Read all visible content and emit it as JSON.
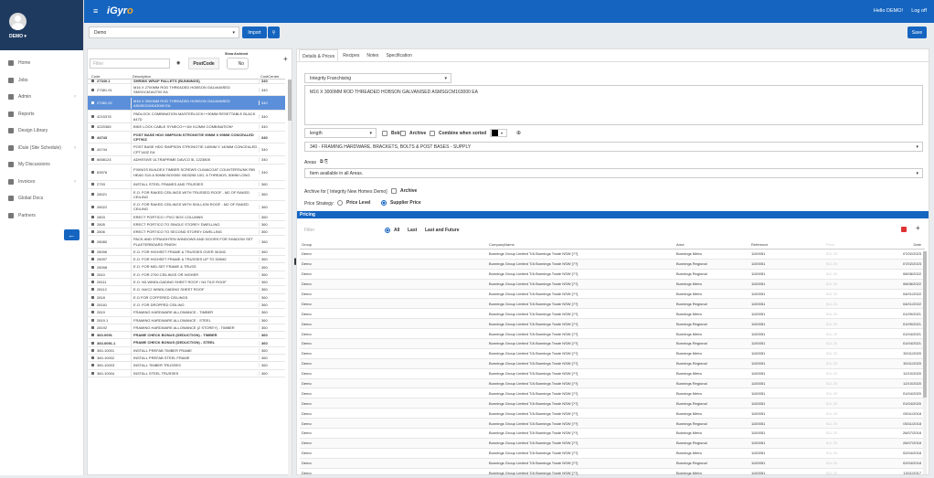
{
  "app": {
    "logo_prefix": "i",
    "logo_g": "Gyr",
    "logo_o": "o",
    "hello": "Hello DEMO!",
    "logoff": "Log off"
  },
  "user": {
    "name": "DEMO ▾"
  },
  "nav": [
    {
      "label": "Home",
      "icon": "home-icon",
      "chevron": ""
    },
    {
      "label": "Jobs",
      "icon": "jobs-icon",
      "chevron": ""
    },
    {
      "label": "Admin",
      "icon": "admin-icon",
      "chevron": "‹"
    },
    {
      "label": "Reports",
      "icon": "reports-icon",
      "chevron": ""
    },
    {
      "label": "Design Library",
      "icon": "design-library-icon",
      "chevron": ""
    },
    {
      "label": "iDule (Site Schedule)",
      "icon": "schedule-icon",
      "chevron": "‹"
    },
    {
      "label": "My Discussions",
      "icon": "discussions-icon",
      "chevron": ""
    },
    {
      "label": "Invoices",
      "icon": "invoices-icon",
      "chevron": "‹"
    },
    {
      "label": "Global Docs",
      "icon": "global-docs-icon",
      "chevron": ""
    },
    {
      "label": "Partners",
      "icon": "partners-icon",
      "chevron": ""
    }
  ],
  "toolbar": {
    "company": "Demo",
    "import": "Import",
    "save": "Save"
  },
  "left": {
    "filter_placeholder": "Filter",
    "postcode": "PostCode",
    "show_archived": "Show Archived",
    "archived_toggle": "No",
    "headers": {
      "code": "Code",
      "desc": "Description",
      "cc": "CostCentre"
    },
    "rows": [
      {
        "code": "27340.1",
        "desc": "SHRINK WRAP PALLETS (BUNNINGS)",
        "cc": "340",
        "style": "bold",
        "h": 6
      },
      {
        "code": "27381.91",
        "desc": "M16 X 2700MM ROD THREADED HOBSON GALVANISED SMSGCM162700 EA",
        "cc": "340",
        "style": "",
        "h": 15
      },
      {
        "code": "27381.92",
        "desc": "M16 X 3000MM ROD THREADED HOBSON GALVANISED ASMSGCM163000 EA",
        "cc": "340",
        "style": "sel",
        "h": 18
      },
      {
        "code": "4215378",
        "desc": "PADLOCK COMBINATION MASTERLOCK++30MM RESETTABLE BLACK 647D",
        "cc": "340",
        "style": "",
        "h": 15
      },
      {
        "code": "4220365",
        "desc": "BIKE LOCK CABLE SYNECO++1M X12MM COMBINATION*",
        "cc": "340",
        "style": "",
        "h": 11
      },
      {
        "code": "44743",
        "desc": "POST BASE HDG SIMPSON STRONGTIE 90MM X 90MM CONCEALED CPT90Z",
        "cc": "340",
        "style": "bold",
        "h": 15
      },
      {
        "code": "44744",
        "desc": "POST BASE HDG SIMPSON STRONGTIE 140MM X 140MM CONCEALED CPT140Z EA",
        "cc": "340",
        "style": "",
        "h": 15
      },
      {
        "code": "6658124",
        "desc": "ADHESIVE ULTRAPRIME DAVCO 5L 1223805",
        "cc": "340",
        "style": "",
        "h": 11
      },
      {
        "code": "83578",
        "desc": "FIXINGS BUILDEX TIMBER SCREWS CLIMACOAT COUNTERSUNK RIB HEAD S10-6 50MM BOX500 X503298 10G, 8 THREADS, 50MM LONG",
        "cc": "340",
        "style": "",
        "h": 21
      },
      {
        "code": "2793",
        "desc": "INSTALL STEEL FRAMES AND TRUSSES",
        "cc": "360",
        "style": "",
        "h": 10
      },
      {
        "code": "28021",
        "desc": "E.O. FOR RAKED CEILINGS WITH TRUSSED ROOF - M2 OF RAKED CEILING",
        "cc": "360",
        "style": "",
        "h": 15
      },
      {
        "code": "28022",
        "desc": "E.O. FOR RAKED CEILINGS WITH SKILLION ROOF - M2 OF RAKED CEILING",
        "cc": "360",
        "style": "",
        "h": 15
      },
      {
        "code": "2803",
        "desc": "ERECT PORTICO / PVC/ BOX COLUMNS",
        "cc": "360",
        "style": "",
        "h": 10
      },
      {
        "code": "2805",
        "desc": "ERECT PORTICO TO SINGLE STOREY DWELLING",
        "cc": "360",
        "style": "",
        "h": 10
      },
      {
        "code": "2806",
        "desc": "ERECT PORTICO TO SECOND STOREY DWELLING",
        "cc": "360",
        "style": "",
        "h": 10
      },
      {
        "code": "28080",
        "desc": "PACK AND STRAIGHTEN WINDOWS AND DOORS FOR SHADOW SET PLASTERBOARD FINISH",
        "cc": "360",
        "style": "",
        "h": 15
      },
      {
        "code": "28096",
        "desc": "E.O. FOR HIGHSET FRAME & TRUSSES OVER 301M2",
        "cc": "360",
        "style": "",
        "h": 10
      },
      {
        "code": "28097",
        "desc": "E.O. FOR HIGHSET FRAME & TRUSSES UP TO 300M2",
        "cc": "360",
        "style": "",
        "h": 10
      },
      {
        "code": "28098",
        "desc": "E.O. FOR MID-SET FRAME & TRUSS",
        "cc": "360",
        "style": "",
        "h": 10
      },
      {
        "code": "2810",
        "desc": "E.O. FOR 2700 CEILINGS OR HIGHER",
        "cc": "360",
        "style": "",
        "h": 10
      },
      {
        "code": "28111",
        "desc": "E.O. N3 WINDLOADING SHEET ROOF / N4 TILE ROOF",
        "cc": "360",
        "style": "",
        "h": 10
      },
      {
        "code": "28112",
        "desc": "E.O. N4/C2 WINDLOADING SHEET ROOF",
        "cc": "360",
        "style": "",
        "h": 10
      },
      {
        "code": "2818",
        "desc": "E.O FOR COFFERED CEILINGS",
        "cc": "360",
        "style": "",
        "h": 10
      },
      {
        "code": "28181",
        "desc": "E.O. FOR DROPPED CEILING",
        "cc": "360",
        "style": "",
        "h": 10
      },
      {
        "code": "2819",
        "desc": "FRAMING HARDWARE ALLOWANCE - TIMBER",
        "cc": "360",
        "style": "",
        "h": 10
      },
      {
        "code": "2819.1",
        "desc": "FRAMING HARDWARE ALLOWANCE - STEEL",
        "cc": "360",
        "style": "",
        "h": 10
      },
      {
        "code": "28192",
        "desc": "FRAMING HARDWARE ALLOWANCE (2 STOREY) - TIMBER",
        "cc": "360",
        "style": "",
        "h": 10
      },
      {
        "code": "360-0091",
        "desc": "FRAME CHECK BONUS (DEDUCTION) - TIMBER",
        "cc": "360",
        "style": "bold",
        "h": 10
      },
      {
        "code": "360-0091.1",
        "desc": "FRAME CHECK BONUS (DEDUCTION) - STEEL",
        "cc": "360",
        "style": "bold",
        "h": 10
      },
      {
        "code": "360-10001",
        "desc": "INSTALL PREFAB TIMBER FRAME",
        "cc": "360",
        "style": "",
        "h": 10
      },
      {
        "code": "360-10002",
        "desc": "INSTALL PREFAB STEEL FRAME",
        "cc": "360",
        "style": "",
        "h": 10
      },
      {
        "code": "360-10003",
        "desc": "INSTALL TIMBER TRUSSES",
        "cc": "360",
        "style": "",
        "h": 10
      },
      {
        "code": "360-10004",
        "desc": "INSTALL STEEL TRUSSES",
        "cc": "360",
        "style": "",
        "h": 10
      }
    ]
  },
  "right": {
    "tabs": [
      "Details & Prices",
      "Recipes",
      "Notes",
      "Specification"
    ],
    "franchise": "Integrity Franchising",
    "description": "M16 X 3000MM ROD THREADED HOBSON GALVANISED ASMSGCM163000 EA",
    "unit": "length",
    "bold": "Bold",
    "archive": "Archive",
    "combine": "Combine when sorted",
    "cost_centre": "340 - FRAMING HARDWARE, BRACKETS, BOLTS & POST BASES - SUPPLY",
    "areas_label": "Areas",
    "areas_value": "Item available in all Areas.",
    "archive_for": "Archive for [ Integrity New Homes Demo]",
    "archive_chk": "Archive",
    "price_strategy": "Price Strategy:",
    "price_level": "Price Level",
    "supplier_price": "Supplier Price",
    "pricing_title": "Pricing",
    "pricing_filter": "Filter",
    "opt_all": "All",
    "opt_last": "Last",
    "opt_last_future": "Last and Future",
    "pricing_headers": [
      "Group",
      "CompanyName",
      "Area",
      "Reference",
      "Price",
      "Date"
    ],
    "pricing_rows": [
      [
        "Demo",
        "Bunnings Group Limited T/A Bunnings Trade NSW [??]",
        "Bunnings Metro",
        "1100051",
        "$11.25",
        "07/02/2023"
      ],
      [
        "Demo",
        "Bunnings Group Limited T/A Bunnings Trade NSW [??]",
        "Bunnings Regional",
        "1100051",
        "$11.25",
        "07/02/2023"
      ],
      [
        "Demo",
        "Bunnings Group Limited T/A Bunnings Trade NSW [??]",
        "Bunnings Regional",
        "1100051",
        "$11.25",
        "08/08/2022"
      ],
      [
        "Demo",
        "Bunnings Group Limited T/A Bunnings Trade NSW [??]",
        "Bunnings Metro",
        "1100051",
        "$11.25",
        "08/08/2022"
      ],
      [
        "Demo",
        "Bunnings Group Limited T/A Bunnings Trade NSW [??]",
        "Bunnings Metro",
        "1100051",
        "$11.25",
        "04/01/2022"
      ],
      [
        "Demo",
        "Bunnings Group Limited T/A Bunnings Trade NSW [??]",
        "Bunnings Regional",
        "1100051",
        "$11.25",
        "04/01/2022"
      ],
      [
        "Demo",
        "Bunnings Group Limited T/A Bunnings Trade NSW [??]",
        "Bunnings Metro",
        "1100051",
        "$11.25",
        "01/09/2021"
      ],
      [
        "Demo",
        "Bunnings Group Limited T/A Bunnings Trade NSW [??]",
        "Bunnings Regional",
        "1100051",
        "$11.25",
        "01/09/2021"
      ],
      [
        "Demo",
        "Bunnings Group Limited T/A Bunnings Trade NSW [??]",
        "Bunnings Metro",
        "1100051",
        "$11.25",
        "01/04/2021"
      ],
      [
        "Demo",
        "Bunnings Group Limited T/A Bunnings Trade NSW [??]",
        "Bunnings Regional",
        "1100051",
        "$11.25",
        "01/04/2021"
      ],
      [
        "Demo",
        "Bunnings Group Limited T/A Bunnings Trade NSW [??]",
        "Bunnings Metro",
        "1100051",
        "$11.25",
        "30/11/2020"
      ],
      [
        "Demo",
        "Bunnings Group Limited T/A Bunnings Trade NSW [??]",
        "Bunnings Regional",
        "1100051",
        "$11.25",
        "30/11/2020"
      ],
      [
        "Demo",
        "Bunnings Group Limited T/A Bunnings Trade NSW [??]",
        "Bunnings Metro",
        "1100051",
        "$11.25",
        "12/10/2020"
      ],
      [
        "Demo",
        "Bunnings Group Limited T/A Bunnings Trade NSW [??]",
        "Bunnings Regional",
        "1100051",
        "$11.25",
        "12/10/2020"
      ],
      [
        "Demo",
        "Bunnings Group Limited T/A Bunnings Trade NSW [??]",
        "Bunnings Metro",
        "1100051",
        "$11.25",
        "01/04/2020"
      ],
      [
        "Demo",
        "Bunnings Group Limited T/A Bunnings Trade NSW [??]",
        "Bunnings Regional",
        "1100051",
        "$11.25",
        "01/04/2020"
      ],
      [
        "Demo",
        "Bunnings Group Limited T/A Bunnings Trade NSW [??]",
        "Bunnings Metro",
        "1100051",
        "$11.25",
        "05/11/2018"
      ],
      [
        "Demo",
        "Bunnings Group Limited T/A Bunnings Trade NSW [??]",
        "Bunnings Regional",
        "1100051",
        "$11.25",
        "05/11/2018"
      ],
      [
        "Demo",
        "Bunnings Group Limited T/A Bunnings Trade NSW [??]",
        "Bunnings Metro",
        "1100051",
        "$11.25",
        "26/07/2018"
      ],
      [
        "Demo",
        "Bunnings Group Limited T/A Bunnings Trade NSW [??]",
        "Bunnings Regional",
        "1100051",
        "$11.25",
        "26/07/2018"
      ],
      [
        "Demo",
        "Bunnings Group Limited T/A Bunnings Trade NSW [??]",
        "Bunnings Metro",
        "1100051",
        "$11.25",
        "02/04/2018"
      ],
      [
        "Demo",
        "Bunnings Group Limited T/A Bunnings Trade NSW [??]",
        "Bunnings Regional",
        "1100051",
        "$11.25",
        "02/04/2018"
      ],
      [
        "Demo",
        "Bunnings Group Limited T/A Bunnings Trade NSW [??]",
        "Bunnings Metro",
        "1100051",
        "$11.25",
        "13/11/2017"
      ]
    ]
  },
  "colors": {
    "primary": "#1565c0",
    "sidebar_head": "#1f3a5f",
    "selected_row": "#5b8fd9"
  }
}
